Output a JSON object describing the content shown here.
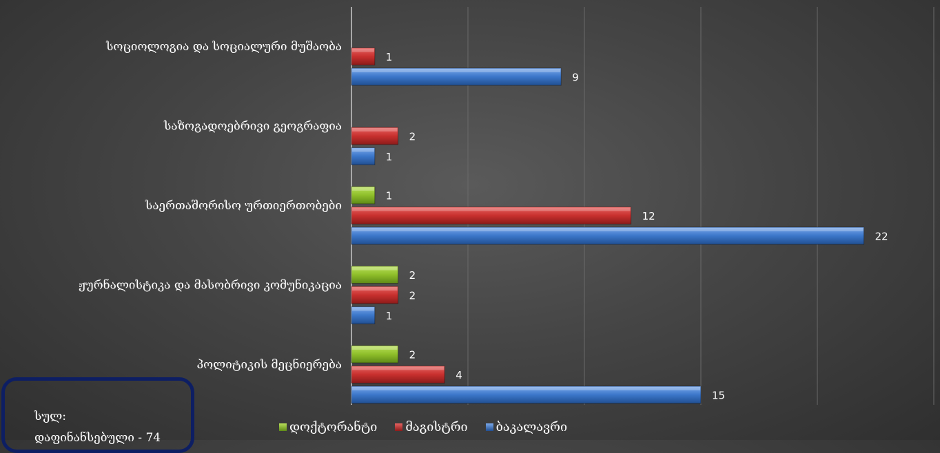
{
  "chart_data": {
    "type": "bar",
    "orientation": "horizontal",
    "categories": [
      "სოციოლოგია და სოციალური მუშაობა",
      "საზოგადოებრივი გეოგრაფია",
      "საერთაშორისო ურთიერთობები",
      "ჟურნალისტიკა და მასობრივი კომუნიკაცია",
      "პოლიტიკის მეცნიერება"
    ],
    "series": [
      {
        "name": "დოქტორანტი",
        "color": "#8fbf2a",
        "values": [
          null,
          null,
          1,
          2,
          2
        ]
      },
      {
        "name": "მაგისტრი",
        "color": "#c8302e",
        "values": [
          1,
          2,
          12,
          2,
          4
        ]
      },
      {
        "name": "ბაკალავრი",
        "color": "#3b76c9",
        "values": [
          9,
          1,
          22,
          1,
          15
        ]
      }
    ],
    "xlim": [
      0,
      25
    ],
    "grid": true,
    "legend_position": "bottom"
  },
  "summary": {
    "line1": "სულ:",
    "line2": "დაფინანსებული - 74"
  }
}
